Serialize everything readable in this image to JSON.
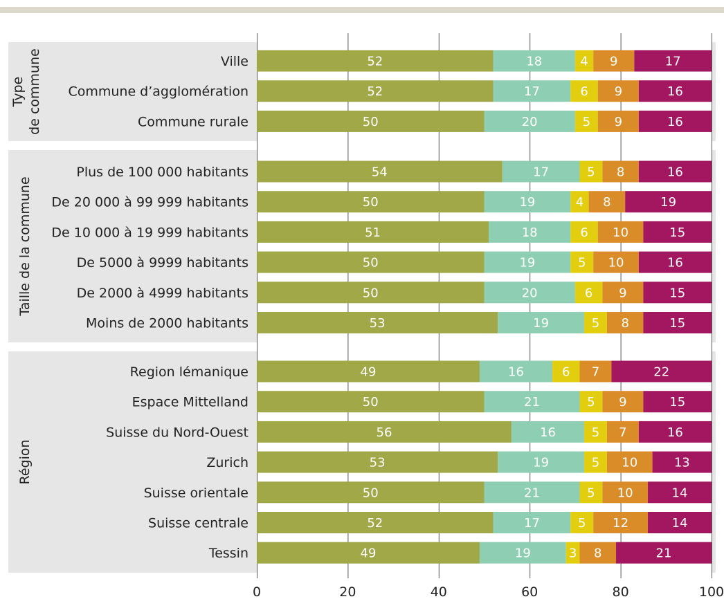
{
  "chart_data": {
    "type": "bar",
    "orientation": "horizontal",
    "stacked": true,
    "xlim": [
      0,
      100
    ],
    "xticks": [
      "0",
      "20",
      "40",
      "60",
      "80",
      "100"
    ],
    "grid": true,
    "legend": "none",
    "colors": [
      "#a0a848",
      "#8ecfb3",
      "#e2cd0f",
      "#da8c29",
      "#a21760"
    ],
    "groups": [
      {
        "label_lines": [
          "Type",
          "de commune"
        ],
        "rows": [
          {
            "label": "Ville",
            "values": [
              52,
              18,
              4,
              9,
              17
            ]
          },
          {
            "label": "Commune d’agglomération",
            "values": [
              52,
              17,
              6,
              9,
              16
            ]
          },
          {
            "label": "Commune rurale",
            "values": [
              50,
              20,
              5,
              9,
              16
            ]
          }
        ]
      },
      {
        "label_lines": [
          "Taille de la commune"
        ],
        "rows": [
          {
            "label": "Plus de 100 000 habitants",
            "values": [
              54,
              17,
              5,
              8,
              16
            ]
          },
          {
            "label": "De 20 000 à 99 999 habitants",
            "values": [
              50,
              19,
              4,
              8,
              19
            ]
          },
          {
            "label": "De 10 000 à 19 999 habitants",
            "values": [
              51,
              18,
              6,
              10,
              15
            ]
          },
          {
            "label": "De 5000 à 9999 habitants",
            "values": [
              50,
              19,
              5,
              10,
              16
            ]
          },
          {
            "label": "De 2000 à 4999 habitants",
            "values": [
              50,
              20,
              6,
              9,
              15
            ]
          },
          {
            "label": "Moins de 2000 habitants",
            "values": [
              53,
              19,
              5,
              8,
              15
            ]
          }
        ]
      },
      {
        "label_lines": [
          "Région"
        ],
        "rows": [
          {
            "label": "Region lémanique",
            "values": [
              49,
              16,
              6,
              7,
              22
            ]
          },
          {
            "label": "Espace Mittelland",
            "values": [
              50,
              21,
              5,
              9,
              15
            ]
          },
          {
            "label": "Suisse du Nord-Ouest",
            "values": [
              56,
              16,
              5,
              7,
              16
            ]
          },
          {
            "label": "Zurich",
            "values": [
              53,
              19,
              5,
              10,
              13
            ]
          },
          {
            "label": "Suisse orientale",
            "values": [
              50,
              21,
              5,
              10,
              14
            ]
          },
          {
            "label": "Suisse centrale",
            "values": [
              52,
              17,
              5,
              12,
              14
            ]
          },
          {
            "label": "Tessin",
            "values": [
              49,
              19,
              3,
              8,
              21
            ]
          }
        ]
      }
    ]
  }
}
